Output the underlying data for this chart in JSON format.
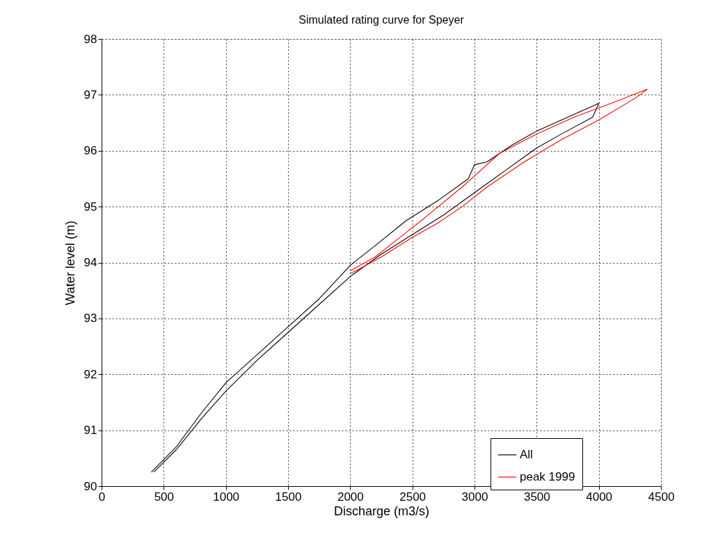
{
  "chart_data": {
    "type": "line",
    "title": "Simulated rating curve for Speyer",
    "xlabel": "Discharge (m3/s)",
    "ylabel": "Water level (m)",
    "xlim": [
      0,
      4500
    ],
    "ylim": [
      90,
      98
    ],
    "xticks": [
      0,
      500,
      1000,
      1500,
      2000,
      2500,
      3000,
      3500,
      4000,
      4500
    ],
    "yticks": [
      90,
      91,
      92,
      93,
      94,
      95,
      96,
      97,
      98
    ],
    "grid": true,
    "legend": "bottom right",
    "line_style": "solid",
    "marker": "none",
    "series": [
      {
        "name": "All",
        "color": "#000000",
        "x": [
          400,
          600,
          800,
          1000,
          1250,
          1500,
          1750,
          2000,
          2200,
          2450,
          2700,
          2950,
          3000,
          3100,
          3300,
          3500,
          3800,
          4000,
          3950,
          3700,
          3500,
          3250,
          3000,
          2750,
          2500,
          2250,
          2000,
          1750,
          1500,
          1250,
          1000,
          800,
          600,
          420
        ],
        "values": [
          90.25,
          90.7,
          91.3,
          91.85,
          92.35,
          92.85,
          93.35,
          93.95,
          94.3,
          94.75,
          95.1,
          95.5,
          95.75,
          95.8,
          96.1,
          96.35,
          96.65,
          96.85,
          96.6,
          96.3,
          96.05,
          95.65,
          95.25,
          94.85,
          94.5,
          94.15,
          93.75,
          93.25,
          92.75,
          92.25,
          91.7,
          91.2,
          90.65,
          90.25
        ]
      },
      {
        "name": "peak 1999",
        "color": "#ff0000",
        "x": [
          2000,
          2200,
          2400,
          2600,
          2900,
          3200,
          3500,
          3800,
          4100,
          4390,
          4300,
          4000,
          3700,
          3400,
          3100,
          2900,
          2700,
          2500,
          2250,
          2000
        ],
        "values": [
          93.85,
          94.1,
          94.45,
          94.8,
          95.35,
          95.95,
          96.3,
          96.6,
          96.85,
          97.1,
          96.95,
          96.55,
          96.2,
          95.8,
          95.35,
          95.0,
          94.7,
          94.45,
          94.1,
          93.8
        ]
      }
    ]
  }
}
